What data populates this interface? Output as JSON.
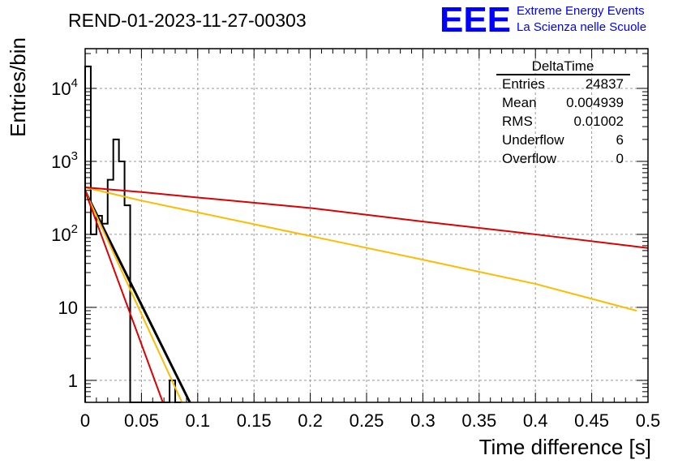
{
  "header": {
    "run_title": "REND-01-2023-11-27-00303",
    "logo_text": "EEE",
    "logo_line1": "Extreme Energy Events",
    "logo_line2": "La Scienza nelle Scuole"
  },
  "stats_box": {
    "title": "DeltaTime",
    "rows": [
      {
        "label": "Entries",
        "value": "24837"
      },
      {
        "label": "Mean",
        "value": "0.004939"
      },
      {
        "label": "RMS",
        "value": "0.01002"
      },
      {
        "label": "Underflow",
        "value": "6"
      },
      {
        "label": "Overflow",
        "value": "0"
      }
    ]
  },
  "colors": {
    "histogram": "#000000",
    "fit_black": "#000000",
    "curve_red": "#dd0000",
    "curve_orange": "#ffbb00",
    "logo_blue": "#0000ff",
    "grid": "#999999"
  },
  "chart_data": {
    "type": "line",
    "log_y": true,
    "grid": true,
    "title": "REND-01-2023-11-27-00303",
    "xlabel": "Time difference [s]",
    "ylabel": "Entries/bin",
    "xlim": [
      0,
      0.5
    ],
    "ylim": [
      0.5,
      35000
    ],
    "x_ticks": [
      0,
      0.05,
      0.1,
      0.15,
      0.2,
      0.25,
      0.3,
      0.35,
      0.4,
      0.45,
      0.5
    ],
    "x_tick_labels": [
      "0",
      "0.05",
      "0.1",
      "0.15",
      "0.2",
      "0.25",
      "0.3",
      "0.35",
      "0.4",
      "0.45",
      "0.5"
    ],
    "y_ticks": [
      1,
      10,
      100,
      1000,
      10000
    ],
    "y_tick_labels": [
      {
        "base": "1",
        "exp": ""
      },
      {
        "base": "10",
        "exp": ""
      },
      {
        "base": "10",
        "exp": "2"
      },
      {
        "base": "10",
        "exp": "3"
      },
      {
        "base": "10",
        "exp": "4"
      }
    ],
    "histogram": {
      "bin_width": 0.005,
      "bins": [
        {
          "x0": 0.0,
          "y": 20000
        },
        {
          "x0": 0.005,
          "y": 100
        },
        {
          "x0": 0.01,
          "y": 180
        },
        {
          "x0": 0.015,
          "y": 140
        },
        {
          "x0": 0.02,
          "y": 560
        },
        {
          "x0": 0.025,
          "y": 2000
        },
        {
          "x0": 0.03,
          "y": 1000
        },
        {
          "x0": 0.035,
          "y": 250
        },
        {
          "x0": 0.04,
          "y": 0.5
        },
        {
          "x0": 0.045,
          "y": 0.5
        },
        {
          "x0": 0.05,
          "y": 0.5
        },
        {
          "x0": 0.055,
          "y": 0.5
        },
        {
          "x0": 0.06,
          "y": 0.5
        },
        {
          "x0": 0.065,
          "y": 0.5
        },
        {
          "x0": 0.07,
          "y": 0.5
        },
        {
          "x0": 0.075,
          "y": 1
        },
        {
          "x0": 0.08,
          "y": 0.5
        }
      ]
    },
    "series": [
      {
        "color": "#000000",
        "width": 3,
        "points": [
          [
            0.0,
            390
          ],
          [
            0.093,
            0.5
          ]
        ]
      },
      {
        "color": "#ffbb00",
        "width": 2,
        "points": [
          [
            0.0,
            390
          ],
          [
            0.086,
            0.5
          ]
        ]
      },
      {
        "color": "#dd0000",
        "width": 2,
        "points": [
          [
            0.0,
            390
          ],
          [
            0.069,
            0.5
          ]
        ]
      },
      {
        "color": "#ffbb00",
        "width": 2,
        "points": [
          [
            0.0,
            440
          ],
          [
            0.05,
            290
          ],
          [
            0.1,
            200
          ],
          [
            0.2,
            95
          ],
          [
            0.3,
            45
          ],
          [
            0.4,
            21
          ],
          [
            0.49,
            9
          ]
        ]
      },
      {
        "color": "#dd0000",
        "width": 2,
        "points": [
          [
            0.0,
            440
          ],
          [
            0.05,
            380
          ],
          [
            0.1,
            320
          ],
          [
            0.2,
            230
          ],
          [
            0.3,
            150
          ],
          [
            0.4,
            100
          ],
          [
            0.5,
            65
          ]
        ]
      }
    ]
  }
}
